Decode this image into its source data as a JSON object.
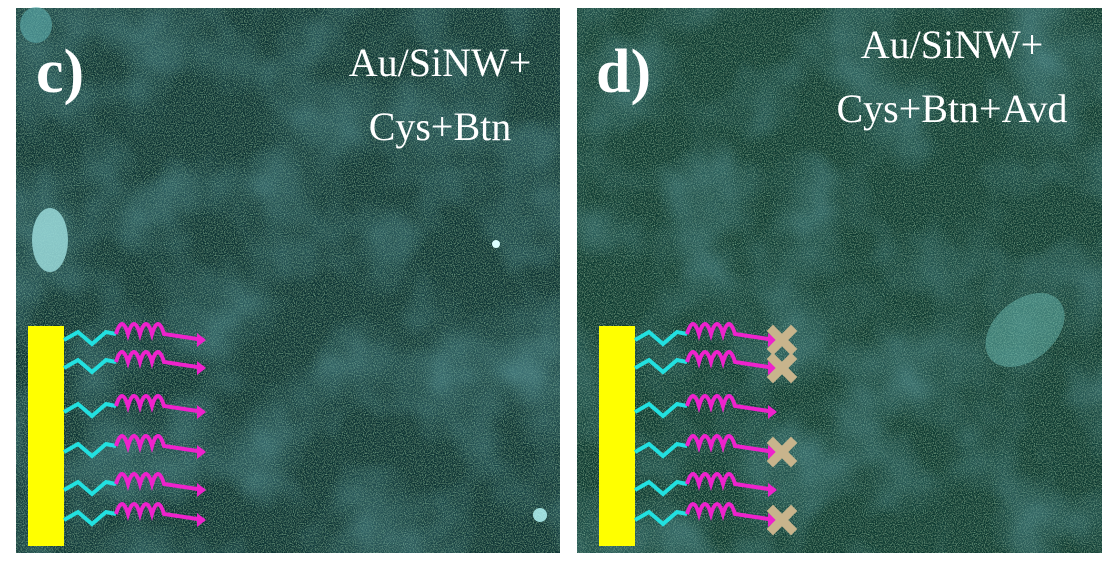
{
  "panels": [
    {
      "label": "c)",
      "caption": [
        "Au/SiNW+",
        "Cys+Btn"
      ]
    },
    {
      "label": "d)",
      "caption": [
        "Au/SiNW+",
        "Cys+Btn+Avd"
      ]
    }
  ]
}
